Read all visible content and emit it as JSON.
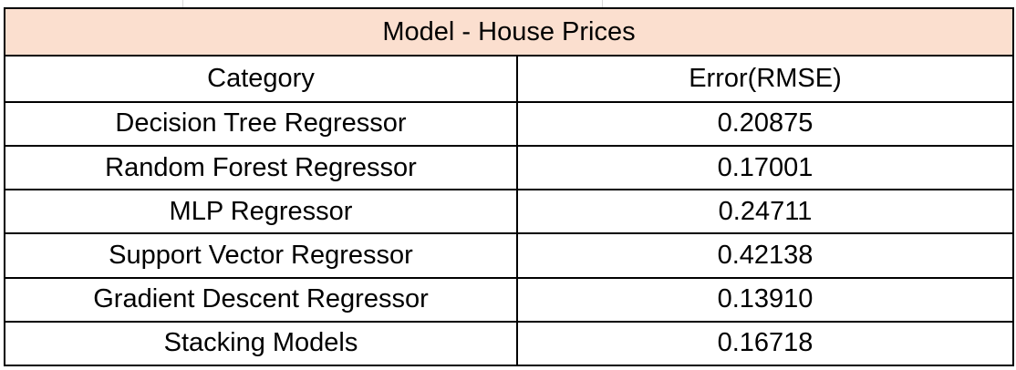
{
  "table": {
    "title": "Model - House Prices",
    "header_fill": "#fbdfcf",
    "columns": [
      "Category",
      "Error(RMSE)"
    ],
    "rows": [
      [
        "Decision Tree Regressor",
        "0.20875"
      ],
      [
        "Random Forest Regressor",
        "0.17001"
      ],
      [
        "MLP Regressor",
        "0.24711"
      ],
      [
        "Support Vector Regressor",
        "0.42138"
      ],
      [
        "Gradient Descent Regressor",
        "0.13910"
      ],
      [
        "Stacking Models",
        "0.16718"
      ]
    ]
  }
}
